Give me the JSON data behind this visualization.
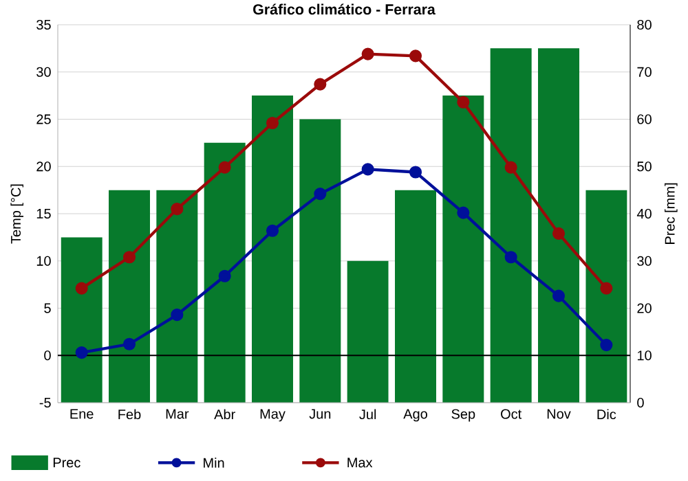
{
  "chart_data": {
    "type": "line",
    "title": "Gráfico climático - Ferrara",
    "categories": [
      "Ene",
      "Feb",
      "Mar",
      "Abr",
      "May",
      "Jun",
      "Jul",
      "Ago",
      "Sep",
      "Oct",
      "Nov",
      "Dic"
    ],
    "ylabel": "Temp [°C]",
    "y2label": "Prec [mm]",
    "ylim": [
      -5,
      35
    ],
    "yticks": [
      -5,
      0,
      5,
      10,
      15,
      20,
      25,
      30,
      35
    ],
    "y2lim": [
      0,
      80
    ],
    "y2ticks": [
      0,
      10,
      20,
      30,
      40,
      50,
      60,
      70,
      80
    ],
    "grid": "y",
    "legend": "bottom",
    "marker": "circle",
    "ref_lines": [
      {
        "axis": "y",
        "value": 0,
        "color": "#000000"
      }
    ],
    "series": [
      {
        "name": "Prec",
        "type": "bar",
        "axis": "y2",
        "color": "#077a2c",
        "values": [
          35,
          45,
          45,
          55,
          65,
          60,
          30,
          45,
          65,
          75,
          75,
          45
        ]
      },
      {
        "name": "Min",
        "color": "#00109a",
        "values": [
          0.3,
          1.2,
          4.3,
          8.4,
          13.2,
          17.1,
          19.7,
          19.4,
          15.1,
          10.4,
          6.3,
          1.1
        ]
      },
      {
        "name": "Max",
        "color": "#9b0a0a",
        "values": [
          7.1,
          10.4,
          15.5,
          19.9,
          24.6,
          28.7,
          31.9,
          31.7,
          26.8,
          19.9,
          12.9,
          7.1
        ]
      }
    ]
  }
}
